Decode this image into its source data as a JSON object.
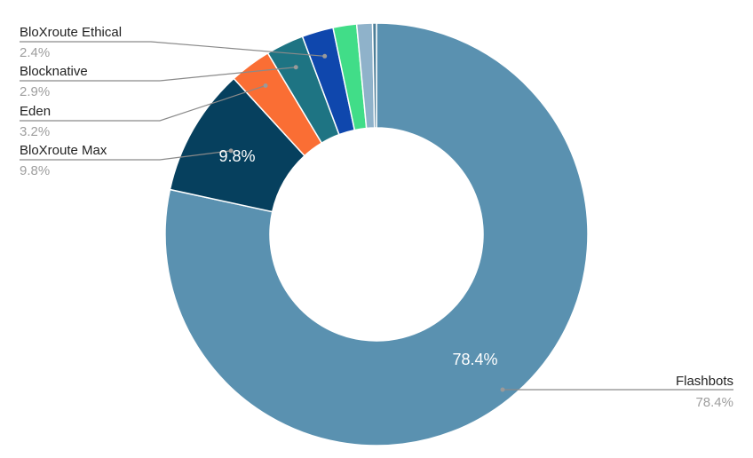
{
  "chart_data": {
    "type": "pie",
    "donut": true,
    "title": "",
    "slices": [
      {
        "name": "Flashbots",
        "value": 78.4,
        "label": "78.4%",
        "color": "#5a91b0"
      },
      {
        "name": "BloXroute Max",
        "value": 9.8,
        "label": "9.8%",
        "color": "#06405e"
      },
      {
        "name": "Eden",
        "value": 3.2,
        "label": "3.2%",
        "color": "#fa6e34"
      },
      {
        "name": "Blocknative",
        "value": 2.9,
        "label": "2.9%",
        "color": "#1e7483"
      },
      {
        "name": "BloXroute Ethical",
        "value": 2.4,
        "label": "2.4%",
        "color": "#0f47ad"
      },
      {
        "name": "",
        "value": 1.8,
        "label": "",
        "color": "#41dd88"
      },
      {
        "name": "",
        "value": 1.2,
        "label": "",
        "color": "#8fb2ca"
      },
      {
        "name": "",
        "value": 0.3,
        "label": "",
        "color": "#4d7f99"
      }
    ],
    "callouts": [
      {
        "name": "BloXroute Ethical",
        "pct": "2.4%"
      },
      {
        "name": "Blocknative",
        "pct": "2.9%"
      },
      {
        "name": "Eden",
        "pct": "3.2%"
      },
      {
        "name": "BloXroute Max",
        "pct": "9.8%"
      },
      {
        "name": "Flashbots",
        "pct": "78.4%"
      }
    ],
    "slice_labels": [
      "9.8%",
      "78.4%"
    ]
  }
}
